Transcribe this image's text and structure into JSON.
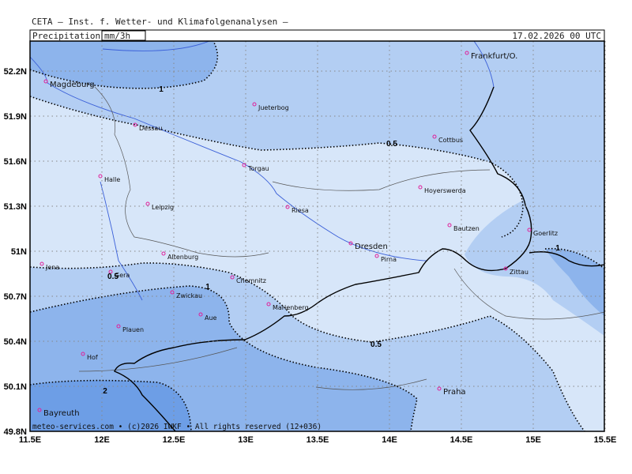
{
  "header": {
    "title": "CETA — Inst. f. Wetter- und Klimafolgenanalysen —",
    "parameter": "Precipitation",
    "unit": "mm/3h",
    "valid_time": "17.02.2026 00 UTC"
  },
  "map": {
    "lat_ticks": [
      {
        "value": 52.2,
        "label": "52.2N"
      },
      {
        "value": 51.9,
        "label": "51.9N"
      },
      {
        "value": 51.6,
        "label": "51.6N"
      },
      {
        "value": 51.3,
        "label": "51.3N"
      },
      {
        "value": 51,
        "label": "51N"
      },
      {
        "value": 50.7,
        "label": "50.7N"
      },
      {
        "value": 50.4,
        "label": "50.4N"
      },
      {
        "value": 50.1,
        "label": "50.1N"
      },
      {
        "value": 49.8,
        "label": "49.8N"
      }
    ],
    "lon_ticks": [
      {
        "value": 11.5,
        "label": "11.5E"
      },
      {
        "value": 12,
        "label": "12E"
      },
      {
        "value": 12.5,
        "label": "12.5E"
      },
      {
        "value": 13,
        "label": "13E"
      },
      {
        "value": 13.5,
        "label": "13.5E"
      },
      {
        "value": 14,
        "label": "14E"
      },
      {
        "value": 14.5,
        "label": "14.5E"
      },
      {
        "value": 15,
        "label": "15E"
      },
      {
        "value": 15.5,
        "label": "15.5E"
      }
    ],
    "cities": [
      "Magdeburg",
      "Frankfurt/O.",
      "Jueterbog",
      "Dessau",
      "Cottbus",
      "Torgau",
      "Halle",
      "Hoyerswerda",
      "Leipzig",
      "Riesa",
      "Bautzen",
      "Goerlitz",
      "Dresden",
      "Altenburg",
      "Jena",
      "Pirna",
      "Gera",
      "Zittau",
      "Chemnitz",
      "Zwickau",
      "Marienberg",
      "Aue",
      "Plauen",
      "Hof",
      "Praha",
      "Bayreuth"
    ],
    "contour_labels": [
      1,
      0.5,
      0.5,
      1,
      0.5,
      2,
      1
    ]
  },
  "footer": "meteo-services.com • (c)2026 IWKF • All rights reserved (12+036)"
}
